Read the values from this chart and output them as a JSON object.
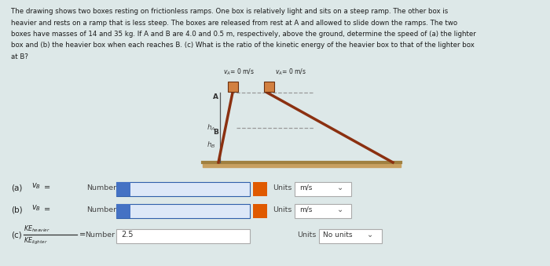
{
  "bg_color": "#dde8e8",
  "text_color": "#1a1a1a",
  "paragraph_lines": [
    "The drawing shows two boxes resting on frictionless ramps. One box is relatively light and sits on a steep ramp. The other box is",
    "heavier and rests on a ramp that is less steep. The boxes are released from rest at A and allowed to slide down the ramps. The two",
    "boxes have masses of 14 and 35 kg. If A and B are 4.0 and 0.5 m, respectively, above the ground, determine the speed of (a) the lighter",
    "box and (b) the heavier box when each reaches B. (c) What is the ratio of the kinetic energy of the heavier box to that of the lighter box",
    "at B?"
  ],
  "diagram": {
    "ramp_color": "#8B3010",
    "ground_color": "#a08040",
    "ground_fill": "#c8a060",
    "box_color": "#D28040",
    "box_edge": "#6a3010",
    "dashed_color": "#999999",
    "label_color": "#333333",
    "vert_color": "#555555"
  },
  "rows": [
    {
      "label_main": "(a)",
      "vb_label": true,
      "number_label": "Number",
      "input_color": "#4472c4",
      "alert_color": "#e05a00",
      "units_value": "m/s",
      "has_value": false
    },
    {
      "label_main": "(b)",
      "vb_label": true,
      "number_label": "Number",
      "input_color": "#4472c4",
      "alert_color": "#e05a00",
      "units_value": "m/s",
      "has_value": false
    },
    {
      "label_main": "(c)",
      "vb_label": false,
      "number_label": "Number",
      "input_color": "#ffffff",
      "input_value": "2.5",
      "units_value": "No units",
      "has_value": true
    }
  ]
}
